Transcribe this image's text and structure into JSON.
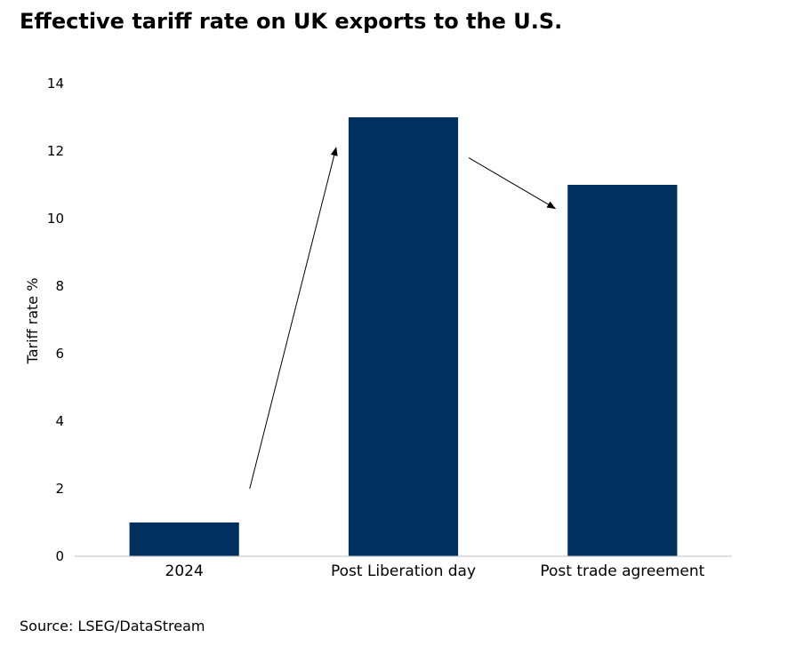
{
  "chart_data": {
    "type": "bar",
    "title": "Effective tariff rate on UK exports to the U.S.",
    "xlabel": "",
    "ylabel": "Tariff rate %",
    "categories": [
      "2024",
      "Post Liberation day",
      "Post trade agreement"
    ],
    "values": [
      1,
      13,
      11
    ],
    "ylim": [
      0,
      14
    ],
    "yticks": [
      0,
      2,
      4,
      6,
      8,
      10,
      12,
      14
    ],
    "grid": false,
    "legend": "none",
    "bar_color": "#00305f",
    "annotations": [
      {
        "type": "arrow",
        "from": "2024",
        "to": "Post Liberation day"
      },
      {
        "type": "arrow",
        "from": "Post Liberation day",
        "to": "Post trade agreement"
      }
    ],
    "source": "Source: LSEG/DataStream"
  }
}
